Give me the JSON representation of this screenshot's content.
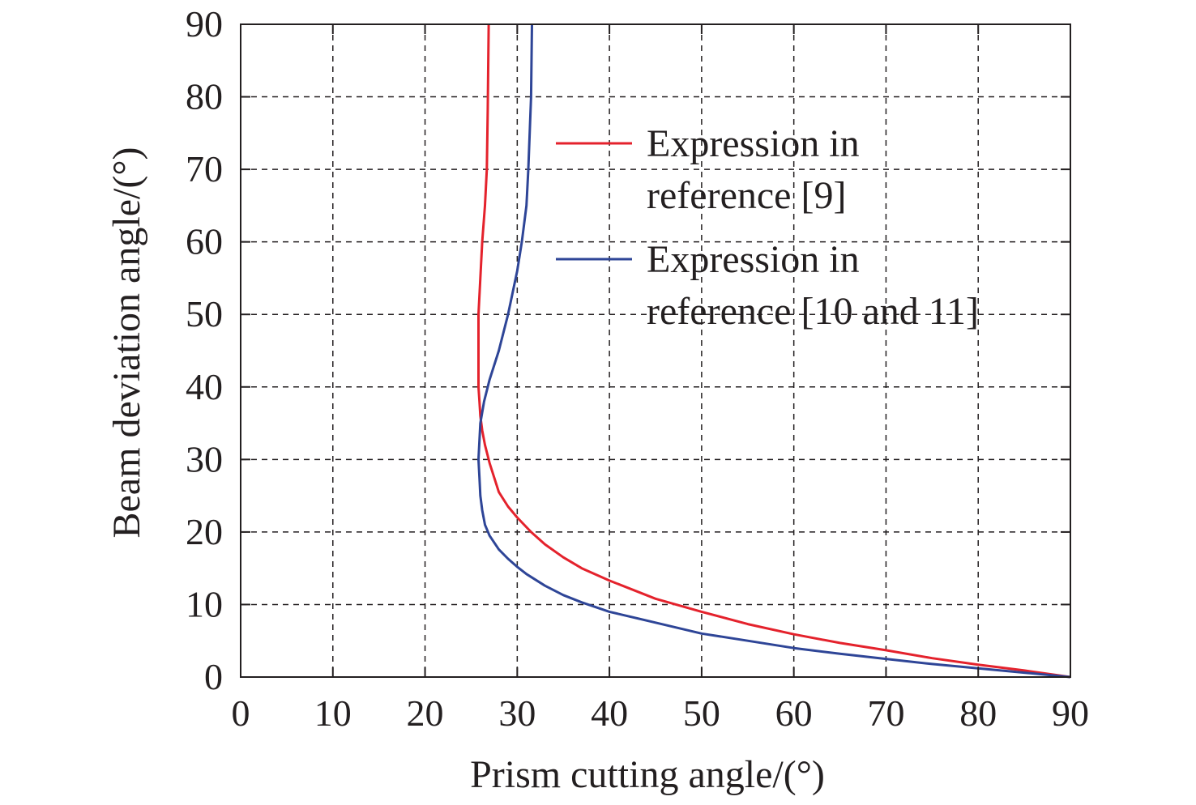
{
  "chart_data": {
    "type": "line",
    "title": "",
    "xlabel": "Prism cutting angle/(°)",
    "ylabel": "Beam deviation angle/(°)",
    "xlim": [
      0,
      90
    ],
    "ylim": [
      0,
      90
    ],
    "xticks": [
      0,
      10,
      20,
      30,
      40,
      50,
      60,
      70,
      80,
      90
    ],
    "yticks": [
      0,
      10,
      20,
      30,
      40,
      50,
      60,
      70,
      80,
      90
    ],
    "grid": true,
    "grid_style": "dashed",
    "legend_position": "upper-right",
    "series": [
      {
        "legend_lines": [
          "Expression in",
          "reference [9]"
        ],
        "color": "#e4222c",
        "x": [
          90,
          85,
          80,
          75,
          70,
          65,
          60,
          55,
          50,
          45,
          40,
          37,
          35,
          33,
          31.5,
          30,
          29,
          28,
          27.5,
          27,
          26.5,
          26.2,
          26,
          25.9,
          25.8,
          25.8,
          25.8,
          26,
          26.2,
          26.5,
          26.7,
          26.8,
          26.9
        ],
        "y": [
          0,
          0.9,
          1.7,
          2.6,
          3.7,
          4.7,
          5.9,
          7.3,
          9,
          10.8,
          13.3,
          15,
          16.5,
          18.3,
          20,
          22,
          23.5,
          25.5,
          27.5,
          29.5,
          32,
          34,
          36,
          38,
          40,
          45,
          50,
          55,
          60,
          65,
          70,
          78,
          90
        ]
      },
      {
        "legend_lines": [
          "Expression in",
          "reference [10 and 11]"
        ],
        "color": "#2e4597",
        "x": [
          90,
          85,
          80,
          75,
          70,
          65,
          60,
          55,
          50,
          45,
          40,
          37,
          35,
          33,
          31,
          30,
          29,
          28,
          27,
          26.5,
          26.2,
          26,
          25.9,
          25.8,
          26,
          26.4,
          27,
          28,
          29,
          30,
          30.5,
          31,
          31.2,
          31.5,
          31.6
        ],
        "y": [
          0,
          0.6,
          1.2,
          1.8,
          2.5,
          3.2,
          4,
          5,
          6,
          7.5,
          9,
          10.3,
          11.3,
          12.6,
          14.2,
          15.2,
          16.3,
          17.6,
          19.5,
          21,
          23,
          25,
          27.5,
          30,
          35,
          38,
          41,
          45,
          50,
          56,
          60,
          65,
          70,
          80,
          90
        ]
      }
    ]
  }
}
